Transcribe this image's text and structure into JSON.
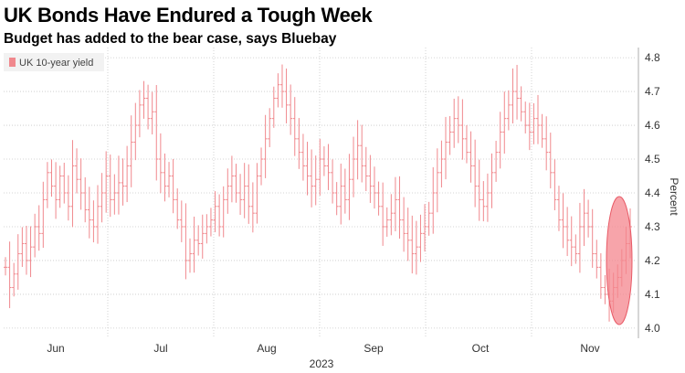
{
  "title": "UK Bonds Have Endured a Tough Week",
  "subtitle": "Budget has added to the bear case, says Bluebay",
  "colors": {
    "series": "#f0888d",
    "highlight": "#f4858e",
    "grid": "#c8c8c8"
  },
  "chart_data": {
    "type": "ohlc",
    "title": "UK Bonds Have Endured a Tough Week",
    "subtitle": "Budget has added to the bear case, says Bluebay",
    "xlabel": "2023",
    "ylabel": "Percent",
    "ylim": [
      3.97,
      4.83
    ],
    "y_axis_side": "right",
    "y_ticks": [
      4.0,
      4.1,
      4.2,
      4.3,
      4.4,
      4.5,
      4.6,
      4.7,
      4.8
    ],
    "y_tick_labels": [
      "4.0",
      "4.1",
      "4.2",
      "4.3",
      "4.4",
      "4.5",
      "4.6",
      "4.7",
      "4.8"
    ],
    "x_tick_labels": [
      "Jun",
      "Jul",
      "Aug",
      "Sep",
      "Oct",
      "Nov"
    ],
    "x_year_label": "2023",
    "grid": true,
    "legend_position": "top-left",
    "series": [
      {
        "name": "UK 10-year yield",
        "values": [
          4.18,
          4.12,
          4.16,
          4.22,
          4.25,
          4.2,
          4.24,
          4.3,
          4.28,
          4.38,
          4.46,
          4.42,
          4.38,
          4.45,
          4.4,
          4.36,
          4.48,
          4.44,
          4.4,
          4.35,
          4.32,
          4.3,
          4.36,
          4.4,
          4.45,
          4.38,
          4.4,
          4.43,
          4.42,
          4.48,
          4.55,
          4.6,
          4.66,
          4.68,
          4.62,
          4.64,
          4.5,
          4.46,
          4.42,
          4.45,
          4.38,
          4.32,
          4.3,
          4.2,
          4.22,
          4.26,
          4.25,
          4.28,
          4.3,
          4.32,
          4.36,
          4.3,
          4.38,
          4.42,
          4.45,
          4.4,
          4.38,
          4.42,
          4.36,
          4.34,
          4.45,
          4.5,
          4.56,
          4.62,
          4.68,
          4.72,
          4.7,
          4.66,
          4.62,
          4.56,
          4.52,
          4.48,
          4.45,
          4.42,
          4.44,
          4.5,
          4.48,
          4.46,
          4.4,
          4.36,
          4.42,
          4.38,
          4.44,
          4.5,
          4.54,
          4.48,
          4.45,
          4.42,
          4.4,
          4.36,
          4.3,
          4.32,
          4.34,
          4.38,
          4.32,
          4.28,
          4.26,
          4.22,
          4.24,
          4.28,
          4.3,
          4.34,
          4.4,
          4.46,
          4.5,
          4.55,
          4.58,
          4.62,
          4.6,
          4.56,
          4.52,
          4.48,
          4.42,
          4.38,
          4.36,
          4.4,
          4.46,
          4.52,
          4.58,
          4.62,
          4.66,
          4.7,
          4.68,
          4.64,
          4.6,
          4.58,
          4.62,
          4.6,
          4.56,
          4.52,
          4.46,
          4.38,
          4.32,
          4.3,
          4.26,
          4.24,
          4.22,
          4.3,
          4.34,
          4.3,
          4.22,
          4.18,
          4.12,
          4.1,
          4.08,
          4.12,
          4.15,
          4.2,
          4.25,
          4.3
        ]
      }
    ],
    "annotations": [
      "red ellipse highlighting the final week of the series"
    ]
  }
}
